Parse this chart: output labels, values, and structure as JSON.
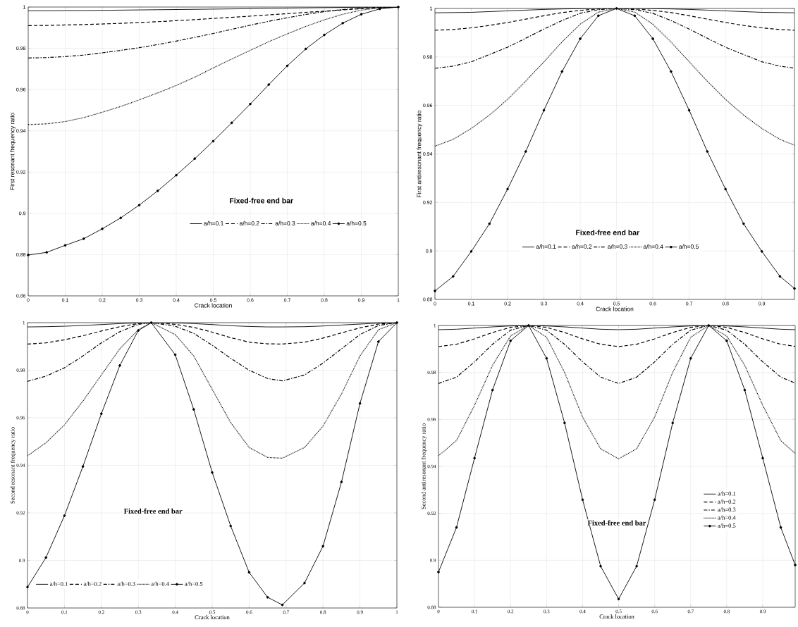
{
  "chart_data": [
    {
      "type": "line",
      "xlabel": "Crack location",
      "ylabel": "First resonant frequency ratio",
      "annotations": [
        "Fixed-free end bar"
      ],
      "xlim": [
        0,
        1
      ],
      "ylim": [
        0.86,
        1
      ],
      "xticks": [
        0,
        0.1,
        0.2,
        0.3,
        0.4,
        0.5,
        0.6,
        0.7,
        0.8,
        0.9,
        1
      ],
      "yticks": [
        0.86,
        0.88,
        0.9,
        0.92,
        0.94,
        0.96,
        0.98,
        1
      ],
      "grid": true,
      "legend": "bottom right",
      "x": [
        0,
        0.05,
        0.1,
        0.15,
        0.2,
        0.25,
        0.3,
        0.35,
        0.4,
        0.45,
        0.5,
        0.55,
        0.6,
        0.65,
        0.7,
        0.75,
        0.8,
        0.85,
        0.9,
        0.95,
        1
      ],
      "series": [
        {
          "name": "a/h=0.1",
          "color": "#000000",
          "line_style": "solid",
          "marker": "none",
          "values": [
            0.9982,
            0.9982,
            0.9983,
            0.9983,
            0.9984,
            0.9985,
            0.9986,
            0.9987,
            0.9988,
            0.9989,
            0.999,
            0.9991,
            0.9992,
            0.9994,
            0.9995,
            0.9996,
            0.9997,
            0.9998,
            0.9999,
            1,
            1
          ]
        },
        {
          "name": "a/h=0.2",
          "color": "#000000",
          "line_style": "dashed",
          "marker": "none",
          "values": [
            0.991,
            0.9911,
            0.9913,
            0.9915,
            0.9918,
            0.9921,
            0.9925,
            0.9929,
            0.9934,
            0.9939,
            0.9945,
            0.995,
            0.9956,
            0.9962,
            0.9968,
            0.9974,
            0.998,
            0.9986,
            0.9992,
            0.9997,
            1
          ]
        },
        {
          "name": "a/h=0.3",
          "color": "#000000",
          "line_style": "dashdot",
          "marker": "none",
          "values": [
            0.9753,
            0.9755,
            0.976,
            0.9767,
            0.9778,
            0.979,
            0.9803,
            0.9818,
            0.9835,
            0.9853,
            0.9872,
            0.9892,
            0.9912,
            0.9931,
            0.9948,
            0.9964,
            0.9978,
            0.9988,
            0.9995,
            0.9999,
            1
          ]
        },
        {
          "name": "a/h=0.4",
          "color": "#000000",
          "line_style": "dotted",
          "marker": "none",
          "values": [
            0.943,
            0.9434,
            0.9445,
            0.9464,
            0.949,
            0.9518,
            0.955,
            0.9584,
            0.962,
            0.966,
            0.9705,
            0.9748,
            0.979,
            0.9832,
            0.987,
            0.9906,
            0.9938,
            0.9965,
            0.9985,
            0.9996,
            1
          ]
        },
        {
          "name": "a/h=0.5",
          "color": "#000000",
          "line_style": "solid",
          "marker": "circle",
          "values": [
            0.8798,
            0.8811,
            0.8845,
            0.8877,
            0.8925,
            0.8978,
            0.904,
            0.9109,
            0.9185,
            0.9265,
            0.935,
            0.9439,
            0.953,
            0.9624,
            0.9715,
            0.9797,
            0.9865,
            0.9922,
            0.9965,
            0.9991,
            1
          ]
        }
      ]
    },
    {
      "type": "line",
      "xlabel": "Crack location",
      "ylabel": "First antiresonant frequency ratio",
      "annotations": [
        "Fixed-free end bar"
      ],
      "xlim": [
        0,
        0.99
      ],
      "ylim": [
        0.88,
        1
      ],
      "xticks": [
        0,
        0.1,
        0.2,
        0.3,
        0.4,
        0.5,
        0.6,
        0.7,
        0.8,
        0.9
      ],
      "yticks": [
        0.88,
        0.9,
        0.92,
        0.94,
        0.96,
        0.98,
        1
      ],
      "grid": true,
      "legend": "bottom",
      "x": [
        0,
        0.05,
        0.1,
        0.15,
        0.2,
        0.25,
        0.3,
        0.35,
        0.4,
        0.45,
        0.5,
        0.55,
        0.6,
        0.65,
        0.7,
        0.75,
        0.8,
        0.85,
        0.9,
        0.95,
        0.99
      ],
      "series": [
        {
          "name": "a/h=0.1",
          "color": "#000000",
          "line_style": "solid",
          "marker": "none",
          "values": [
            0.9982,
            0.9983,
            0.9984,
            0.9987,
            0.999,
            0.9993,
            0.9996,
            0.9998,
            0.9999,
            1,
            1,
            1,
            0.9999,
            0.9998,
            0.9996,
            0.9993,
            0.999,
            0.9987,
            0.9984,
            0.9983,
            0.9982
          ]
        },
        {
          "name": "a/h=0.2",
          "color": "#000000",
          "line_style": "dashed",
          "marker": "none",
          "values": [
            0.991,
            0.9913,
            0.992,
            0.993,
            0.9942,
            0.9956,
            0.997,
            0.9983,
            0.9992,
            0.9998,
            1,
            0.9998,
            0.9992,
            0.9983,
            0.997,
            0.9956,
            0.9942,
            0.993,
            0.992,
            0.9913,
            0.991
          ]
        },
        {
          "name": "a/h=0.3",
          "color": "#000000",
          "line_style": "dashdot",
          "marker": "none",
          "values": [
            0.9753,
            0.9762,
            0.978,
            0.981,
            0.984,
            0.9877,
            0.9915,
            0.995,
            0.998,
            0.9995,
            1,
            0.9995,
            0.998,
            0.995,
            0.9915,
            0.9877,
            0.984,
            0.981,
            0.978,
            0.9762,
            0.9754
          ]
        },
        {
          "name": "a/h=0.4",
          "color": "#000000",
          "line_style": "dotted",
          "marker": "none",
          "values": [
            0.9432,
            0.946,
            0.9505,
            0.956,
            0.9625,
            0.97,
            0.978,
            0.9862,
            0.9935,
            0.9985,
            1,
            0.9985,
            0.9935,
            0.9862,
            0.978,
            0.97,
            0.9625,
            0.956,
            0.9505,
            0.946,
            0.9436
          ]
        },
        {
          "name": "a/h=0.5",
          "color": "#000000",
          "line_style": "solid",
          "marker": "circle",
          "values": [
            0.8835,
            0.8895,
            0.8998,
            0.9112,
            0.9255,
            0.941,
            0.958,
            0.974,
            0.9875,
            0.997,
            1,
            0.997,
            0.9875,
            0.974,
            0.958,
            0.941,
            0.9255,
            0.9112,
            0.8998,
            0.8895,
            0.8845
          ]
        }
      ]
    },
    {
      "type": "line",
      "xlabel": "Crack location",
      "ylabel": "Second resonant frequency ratio",
      "annotations": [
        "Fixed-free end bar"
      ],
      "xlim": [
        0,
        1
      ],
      "ylim": [
        0.88,
        1
      ],
      "xticks": [
        0,
        0.1,
        0.2,
        0.3,
        0.4,
        0.5,
        0.6,
        0.7,
        0.8,
        0.9,
        1
      ],
      "yticks": [
        0.88,
        0.9,
        0.92,
        0.94,
        0.96,
        0.98,
        1
      ],
      "grid": true,
      "legend": "bottom left",
      "x": [
        0,
        0.05,
        0.1,
        0.15,
        0.2,
        0.25,
        0.3,
        0.335,
        0.4,
        0.45,
        0.5,
        0.55,
        0.6,
        0.65,
        0.69,
        0.75,
        0.8,
        0.85,
        0.9,
        0.95,
        1
      ],
      "series": [
        {
          "name": "a/h=0.1",
          "color": "#000000",
          "line_style": "solid",
          "marker": "none",
          "values": [
            0.9982,
            0.9983,
            0.9985,
            0.9988,
            0.9992,
            0.9996,
            0.9999,
            1,
            0.9999,
            0.9996,
            0.9992,
            0.9987,
            0.9984,
            0.9982,
            0.9982,
            0.9983,
            0.9986,
            0.999,
            0.9994,
            0.9998,
            1
          ]
        },
        {
          "name": "a/h=0.2",
          "color": "#000000",
          "line_style": "dashed",
          "marker": "none",
          "values": [
            0.991,
            0.9915,
            0.9928,
            0.9945,
            0.9965,
            0.9983,
            0.9996,
            1,
            0.9993,
            0.998,
            0.996,
            0.9937,
            0.9918,
            0.9911,
            0.991,
            0.9918,
            0.9935,
            0.9957,
            0.9978,
            0.9994,
            1
          ]
        },
        {
          "name": "a/h=0.3",
          "color": "#000000",
          "line_style": "dashdot",
          "marker": "none",
          "values": [
            0.9753,
            0.9775,
            0.981,
            0.986,
            0.9915,
            0.9962,
            0.9993,
            1,
            0.9985,
            0.9955,
            0.9905,
            0.985,
            0.98,
            0.9765,
            0.9755,
            0.978,
            0.983,
            0.989,
            0.995,
            0.9988,
            1
          ]
        },
        {
          "name": "a/h=0.4",
          "color": "#000000",
          "line_style": "dotted",
          "marker": "none",
          "values": [
            0.944,
            0.9495,
            0.957,
            0.967,
            0.978,
            0.989,
            0.997,
            1,
            0.995,
            0.986,
            0.972,
            0.958,
            0.9475,
            0.9433,
            0.943,
            0.9475,
            0.9565,
            0.97,
            0.986,
            0.997,
            1
          ]
        },
        {
          "name": "a/h=0.5",
          "color": "#000000",
          "line_style": "solid",
          "marker": "circle",
          "values": [
            0.8888,
            0.9012,
            0.9188,
            0.9395,
            0.9617,
            0.982,
            0.9967,
            1,
            0.9865,
            0.9635,
            0.937,
            0.9145,
            0.895,
            0.8845,
            0.8813,
            0.8905,
            0.906,
            0.933,
            0.966,
            0.992,
            1
          ]
        }
      ]
    },
    {
      "type": "line",
      "xlabel": "Crack location",
      "ylabel": "Second antiresonant frequency ratio",
      "annotations": [
        "Fixed-free end bar"
      ],
      "xlim": [
        0,
        0.99
      ],
      "ylim": [
        0.88,
        1
      ],
      "xticks": [
        0,
        0.1,
        0.2,
        0.3,
        0.4,
        0.5,
        0.6,
        0.7,
        0.8,
        0.9
      ],
      "yticks": [
        0.88,
        0.9,
        0.92,
        0.94,
        0.96,
        0.98,
        1
      ],
      "grid": true,
      "legend": "right",
      "x": [
        0,
        0.05,
        0.1,
        0.15,
        0.2,
        0.25,
        0.3,
        0.35,
        0.4,
        0.45,
        0.5,
        0.55,
        0.6,
        0.65,
        0.7,
        0.75,
        0.8,
        0.85,
        0.9,
        0.95,
        0.99
      ],
      "series": [
        {
          "name": "a/h=0.1",
          "color": "#000000",
          "line_style": "solid",
          "marker": "none",
          "values": [
            0.9982,
            0.9984,
            0.9989,
            0.9994,
            0.9998,
            1,
            0.9998,
            0.9994,
            0.9989,
            0.9984,
            0.9982,
            0.9984,
            0.9989,
            0.9994,
            0.9998,
            1,
            0.9998,
            0.9994,
            0.9989,
            0.9984,
            0.9982
          ]
        },
        {
          "name": "a/h=0.2",
          "color": "#000000",
          "line_style": "dashed",
          "marker": "none",
          "values": [
            0.991,
            0.992,
            0.9943,
            0.997,
            0.9992,
            1,
            0.9992,
            0.997,
            0.9943,
            0.992,
            0.991,
            0.992,
            0.9943,
            0.997,
            0.9992,
            1,
            0.9992,
            0.997,
            0.9943,
            0.992,
            0.9911
          ]
        },
        {
          "name": "a/h=0.3",
          "color": "#000000",
          "line_style": "dashdot",
          "marker": "none",
          "values": [
            0.9753,
            0.978,
            0.9845,
            0.992,
            0.998,
            1,
            0.998,
            0.992,
            0.9845,
            0.978,
            0.9753,
            0.978,
            0.9845,
            0.992,
            0.998,
            1,
            0.998,
            0.992,
            0.9845,
            0.978,
            0.9755
          ]
        },
        {
          "name": "a/h=0.4",
          "color": "#000000",
          "line_style": "dotted",
          "marker": "none",
          "values": [
            0.9445,
            0.951,
            0.966,
            0.983,
            0.9955,
            1,
            0.995,
            0.98,
            0.961,
            0.9475,
            0.9432,
            0.9475,
            0.961,
            0.98,
            0.995,
            1,
            0.9955,
            0.983,
            0.966,
            0.951,
            0.9455
          ]
        },
        {
          "name": "a/h=0.5",
          "color": "#000000",
          "line_style": "solid",
          "marker": "circle",
          "values": [
            0.895,
            0.914,
            0.9435,
            0.9725,
            0.9935,
            1,
            0.986,
            0.9585,
            0.9258,
            0.8975,
            0.8835,
            0.8975,
            0.9258,
            0.9585,
            0.986,
            1,
            0.9935,
            0.9725,
            0.9435,
            0.914,
            0.898
          ]
        }
      ]
    }
  ]
}
